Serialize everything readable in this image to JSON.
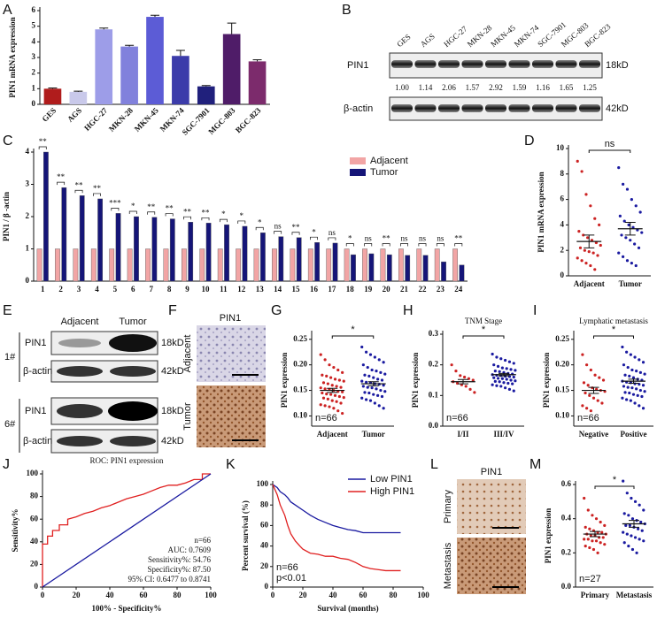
{
  "chart_data": [
    {
      "type": "bar",
      "panel": "A",
      "ylabel": "PIN1 mRNA expression",
      "categories": [
        "GES",
        "AGS",
        "HGC-27",
        "MKN-28",
        "MKN-45",
        "MKN-74",
        "SGC-7901",
        "MGC-803",
        "BGC-823"
      ],
      "values": [
        1.0,
        0.8,
        4.8,
        3.7,
        5.6,
        3.1,
        1.15,
        4.5,
        2.75
      ],
      "errors": [
        0.05,
        0.04,
        0.08,
        0.08,
        0.1,
        0.35,
        0.05,
        0.7,
        0.1
      ],
      "colors": [
        "#b01c1c",
        "#c9c9ea",
        "#9d9de8",
        "#8181dc",
        "#5c5cd6",
        "#3c3caa",
        "#20207c",
        "#4f1c68",
        "#7c2b6c"
      ],
      "ylim": [
        0,
        6
      ],
      "yticks": [
        0,
        1,
        2,
        3,
        4,
        5,
        6
      ]
    },
    {
      "type": "bar",
      "panel": "C",
      "ylabel": "PIN1 / β -actin",
      "categories": [
        "1",
        "2",
        "3",
        "4",
        "5",
        "6",
        "7",
        "8",
        "9",
        "10",
        "11",
        "12",
        "13",
        "14",
        "15",
        "16",
        "17",
        "18",
        "19",
        "20",
        "21",
        "22",
        "23",
        "24"
      ],
      "series": [
        {
          "name": "Adjacent",
          "color": "#f2a5a5",
          "values": [
            1,
            1,
            1,
            1,
            1,
            1,
            1,
            1,
            1,
            1,
            1,
            1,
            1,
            1,
            1,
            1,
            1,
            1,
            1,
            1,
            1,
            1,
            1,
            1
          ]
        },
        {
          "name": "Tumor",
          "color": "#151578",
          "values": [
            4.0,
            2.9,
            2.65,
            2.55,
            2.1,
            2.0,
            1.98,
            1.93,
            1.83,
            1.8,
            1.75,
            1.7,
            1.5,
            1.38,
            1.35,
            1.2,
            1.18,
            0.82,
            0.85,
            0.82,
            0.8,
            0.8,
            0.6,
            0.5
          ]
        }
      ],
      "sig": [
        "**",
        "**",
        "**",
        "**",
        "***",
        "*",
        "**",
        "**",
        "**",
        "**",
        "*",
        "*",
        "*",
        "ns",
        "**",
        "*",
        "ns",
        "*",
        "ns",
        "**",
        "ns",
        "ns",
        "ns",
        "**"
      ],
      "ylim": [
        0,
        4
      ],
      "yticks": [
        0,
        1,
        2,
        3,
        4
      ]
    },
    {
      "type": "dotplot",
      "panel": "D",
      "ylabel": "PIN1 mRNA expression",
      "sig": "ns",
      "groups": [
        {
          "name": "Adjacent",
          "color": "#cc2222",
          "mean": 2.7,
          "sem": 0.5,
          "values": [
            9.0,
            8.2,
            6.4,
            5.5,
            4.5,
            4.0,
            3.5,
            3.2,
            3.0,
            2.8,
            2.6,
            2.4,
            2.2,
            2.0,
            1.9,
            1.8,
            1.6,
            1.4,
            1.2,
            1.0,
            0.8,
            0.5
          ]
        },
        {
          "name": "Tumor",
          "color": "#1a1aa0",
          "mean": 3.7,
          "sem": 0.5,
          "values": [
            8.5,
            7.2,
            6.8,
            6.0,
            5.5,
            5.0,
            4.7,
            4.3,
            4.0,
            3.8,
            3.6,
            3.4,
            3.2,
            3.0,
            2.8,
            2.5,
            2.2,
            1.8,
            1.5,
            1.2,
            1.0,
            0.8
          ]
        }
      ],
      "ylim": [
        0,
        10
      ],
      "yticks": [
        0,
        2,
        4,
        6,
        8,
        10
      ]
    },
    {
      "type": "dotplot",
      "panel": "G",
      "ylabel": "PIN1 expression",
      "sig": "*",
      "note": "n=66",
      "groups": [
        {
          "name": "Adjacent",
          "color": "#cc2222",
          "mean": 0.15,
          "sem": 0.004,
          "values": [
            0.22,
            0.21,
            0.2,
            0.195,
            0.19,
            0.185,
            0.18,
            0.178,
            0.175,
            0.172,
            0.17,
            0.168,
            0.165,
            0.163,
            0.16,
            0.158,
            0.156,
            0.155,
            0.153,
            0.152,
            0.15,
            0.148,
            0.147,
            0.145,
            0.143,
            0.142,
            0.14,
            0.138,
            0.136,
            0.135,
            0.133,
            0.13,
            0.128,
            0.125,
            0.122,
            0.12,
            0.118,
            0.115,
            0.11,
            0.105
          ]
        },
        {
          "name": "Tumor",
          "color": "#1a1aa0",
          "mean": 0.163,
          "sem": 0.004,
          "values": [
            0.235,
            0.225,
            0.22,
            0.215,
            0.21,
            0.205,
            0.2,
            0.195,
            0.19,
            0.188,
            0.185,
            0.182,
            0.18,
            0.178,
            0.175,
            0.172,
            0.17,
            0.168,
            0.166,
            0.165,
            0.163,
            0.162,
            0.16,
            0.158,
            0.156,
            0.155,
            0.153,
            0.15,
            0.148,
            0.146,
            0.145,
            0.142,
            0.14,
            0.138,
            0.135,
            0.132,
            0.13,
            0.125,
            0.12,
            0.115
          ]
        }
      ],
      "ylim": [
        0.08,
        0.26
      ],
      "yticks": [
        {
          "value": 0.1,
          "label": "0.10"
        },
        0.15,
        {
          "value": 0.2,
          "label": "0.20"
        },
        0.25
      ]
    },
    {
      "type": "dotplot",
      "panel": "H",
      "title": "TNM Stage",
      "ylabel": "PIN1 expression",
      "sig": "*",
      "note": "n=66",
      "groups": [
        {
          "name": "I/II",
          "color": "#cc2222",
          "mean": 0.145,
          "sem": 0.007,
          "values": [
            0.2,
            0.18,
            0.165,
            0.16,
            0.155,
            0.15,
            0.145,
            0.14,
            0.135,
            0.13,
            0.12,
            0.11
          ]
        },
        {
          "name": "III/IV",
          "color": "#1a1aa0",
          "mean": 0.168,
          "sem": 0.004,
          "values": [
            0.235,
            0.225,
            0.22,
            0.215,
            0.21,
            0.205,
            0.2,
            0.195,
            0.19,
            0.188,
            0.185,
            0.182,
            0.18,
            0.178,
            0.175,
            0.172,
            0.17,
            0.168,
            0.166,
            0.165,
            0.163,
            0.162,
            0.16,
            0.158,
            0.156,
            0.155,
            0.153,
            0.15,
            0.148,
            0.146,
            0.145,
            0.142,
            0.14,
            0.138,
            0.135,
            0.132,
            0.13,
            0.125,
            0.12,
            0.115
          ]
        }
      ],
      "ylim": [
        0,
        0.3
      ],
      "yticks": [
        {
          "value": 0,
          "label": "0.0"
        },
        0.1,
        0.2,
        0.3
      ]
    },
    {
      "type": "dotplot",
      "panel": "I",
      "title": "Lymphatic metastasis",
      "ylabel": "PIN1 expression",
      "sig": "*",
      "note": "n=66",
      "groups": [
        {
          "name": "Negative",
          "color": "#cc2222",
          "mean": 0.15,
          "sem": 0.006,
          "values": [
            0.22,
            0.2,
            0.19,
            0.18,
            0.175,
            0.17,
            0.165,
            0.16,
            0.155,
            0.152,
            0.15,
            0.148,
            0.145,
            0.14,
            0.135,
            0.13,
            0.125,
            0.12,
            0.115,
            0.11
          ]
        },
        {
          "name": "Positive",
          "color": "#1a1aa0",
          "mean": 0.168,
          "sem": 0.004,
          "values": [
            0.235,
            0.225,
            0.22,
            0.215,
            0.21,
            0.205,
            0.2,
            0.195,
            0.19,
            0.188,
            0.185,
            0.182,
            0.18,
            0.178,
            0.175,
            0.172,
            0.17,
            0.168,
            0.166,
            0.165,
            0.163,
            0.162,
            0.16,
            0.158,
            0.156,
            0.155,
            0.153,
            0.15,
            0.148,
            0.146,
            0.145,
            0.142,
            0.14,
            0.138,
            0.135,
            0.132,
            0.13,
            0.125,
            0.12,
            0.115
          ]
        }
      ],
      "ylim": [
        0.08,
        0.26
      ],
      "yticks": [
        {
          "value": 0.1,
          "label": "0.10"
        },
        0.15,
        {
          "value": 0.2,
          "label": "0.20"
        },
        0.25
      ]
    },
    {
      "type": "line",
      "panel": "J",
      "title": "ROC: PIN1 expression",
      "xlabel": "100% - Specificity%",
      "ylabel": "Sensitivity%",
      "annotations": [
        "n=66",
        "AUC: 0.7609",
        "Sensitivity%: 54.76",
        "Specificity%: 87.50",
        "95% CI: 0.6477 to 0.8741"
      ],
      "series": [
        {
          "color": "#e02020",
          "x": [
            0,
            0,
            3,
            3,
            6,
            6,
            10,
            10,
            15,
            15,
            20,
            25,
            30,
            35,
            40,
            45,
            50,
            55,
            60,
            65,
            70,
            75,
            80,
            85,
            90,
            95,
            95,
            100
          ],
          "values": [
            0,
            38,
            38,
            45,
            45,
            50,
            50,
            55,
            55,
            60,
            62,
            65,
            67,
            70,
            72,
            75,
            78,
            80,
            82,
            85,
            88,
            90,
            90,
            92,
            95,
            95,
            100,
            100
          ]
        },
        {
          "color": "#1a1aa0",
          "x": [
            0,
            100
          ],
          "values": [
            0,
            100
          ]
        }
      ],
      "xlim": [
        0,
        100
      ],
      "xticks": [
        0,
        20,
        40,
        60,
        80,
        100
      ],
      "ylim": [
        0,
        100
      ],
      "yticks": [
        0,
        20,
        40,
        60,
        80,
        100
      ]
    },
    {
      "type": "line",
      "panel": "K",
      "xlabel": "Survival (months)",
      "ylabel": "Percent survival (%)",
      "annotations": [
        "n=66",
        "p<0.01"
      ],
      "series": [
        {
          "name": "Low PIN1",
          "color": "#1a1aa0",
          "x": [
            0,
            3,
            5,
            8,
            10,
            12,
            15,
            20,
            25,
            30,
            35,
            40,
            45,
            50,
            55,
            60,
            65,
            70,
            75,
            80,
            85
          ],
          "values": [
            100,
            97,
            93,
            90,
            87,
            83,
            80,
            75,
            70,
            66,
            63,
            60,
            58,
            56,
            55,
            53,
            53,
            53,
            53,
            53,
            53
          ]
        },
        {
          "name": "High PIN1",
          "color": "#e02020",
          "x": [
            0,
            3,
            5,
            8,
            10,
            12,
            15,
            18,
            20,
            25,
            30,
            35,
            40,
            45,
            50,
            55,
            60,
            65,
            70,
            75,
            80,
            85
          ],
          "values": [
            100,
            90,
            80,
            70,
            60,
            52,
            45,
            40,
            37,
            33,
            32,
            30,
            30,
            28,
            27,
            24,
            20,
            18,
            17,
            16,
            16,
            16
          ]
        }
      ],
      "xlim": [
        0,
        100
      ],
      "xticks": [
        0,
        20,
        40,
        60,
        80,
        100
      ],
      "ylim": [
        0,
        100
      ],
      "yticks": [
        0,
        20,
        40,
        60,
        80,
        100
      ]
    },
    {
      "type": "dotplot",
      "panel": "M",
      "ylabel": "PIN1 expression",
      "sig": "*",
      "note": "n=27",
      "groups": [
        {
          "name": "Primary",
          "color": "#cc2222",
          "mean": 0.31,
          "sem": 0.015,
          "values": [
            0.52,
            0.45,
            0.42,
            0.4,
            0.38,
            0.36,
            0.35,
            0.34,
            0.33,
            0.32,
            0.32,
            0.31,
            0.31,
            0.3,
            0.3,
            0.29,
            0.29,
            0.28,
            0.28,
            0.27,
            0.27,
            0.26,
            0.25,
            0.24,
            0.23,
            0.22,
            0.2
          ]
        },
        {
          "name": "Metastasis",
          "color": "#1a1aa0",
          "mean": 0.37,
          "sem": 0.02,
          "values": [
            0.62,
            0.55,
            0.52,
            0.5,
            0.48,
            0.45,
            0.43,
            0.42,
            0.4,
            0.39,
            0.38,
            0.37,
            0.36,
            0.36,
            0.35,
            0.34,
            0.33,
            0.32,
            0.31,
            0.3,
            0.29,
            0.28,
            0.27,
            0.26,
            0.24,
            0.22,
            0.2
          ]
        }
      ],
      "ylim": [
        0,
        0.6
      ],
      "yticks": [
        {
          "value": 0,
          "label": "0.0"
        },
        0.2,
        0.4,
        0.6
      ]
    }
  ],
  "blot_b": {
    "panel": "B",
    "lanes": [
      "GES",
      "AGS",
      "HGC-27",
      "MKN-28",
      "MKN-45",
      "MKN-74",
      "SGC-7901",
      "MGC-803",
      "BGC-823"
    ],
    "rows": [
      "PIN1",
      "β-actin"
    ],
    "sizes": [
      "18kD",
      "42kD"
    ],
    "quant": [
      "1.00",
      "1.14",
      "2.06",
      "1.57",
      "2.92",
      "1.59",
      "1.16",
      "1.65",
      "1.25"
    ]
  },
  "blot_e": {
    "panel": "E",
    "columns": [
      "Adjacent",
      "Tumor"
    ],
    "groups": [
      {
        "label": "1#",
        "rows": [
          "PIN1",
          "β-actin"
        ],
        "sizes": [
          "18kD",
          "42kD"
        ]
      },
      {
        "label": "6#",
        "rows": [
          "PIN1",
          "β-actin"
        ],
        "sizes": [
          "18kD",
          "42kD"
        ]
      }
    ]
  },
  "ihc_f": {
    "panel": "F",
    "title": "PIN1",
    "rows": [
      "Adjacent",
      "Tumor"
    ]
  },
  "ihc_l": {
    "panel": "L",
    "title": "PIN1",
    "rows": [
      "Primary",
      "Metastasis"
    ]
  }
}
